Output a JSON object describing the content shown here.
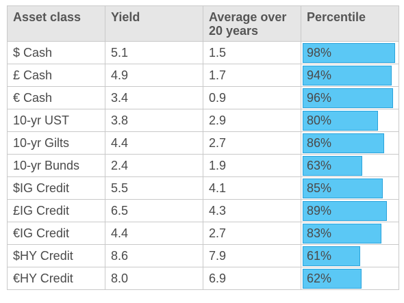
{
  "chart_data": {
    "type": "table",
    "columns": [
      "Asset class",
      "Yield",
      "Average over 20 years",
      "Percentile"
    ],
    "column_lines": {
      "avg": [
        "Average over",
        "20 years"
      ]
    },
    "rows": [
      {
        "asset": "$ Cash",
        "yield": "5.1",
        "avg": "1.5",
        "percentile": 98,
        "percentile_label": "98%"
      },
      {
        "asset": "£ Cash",
        "yield": "4.9",
        "avg": "1.7",
        "percentile": 94,
        "percentile_label": "94%"
      },
      {
        "asset": "€ Cash",
        "yield": "3.4",
        "avg": "0.9",
        "percentile": 96,
        "percentile_label": "96%"
      },
      {
        "asset": "10-yr UST",
        "yield": "3.8",
        "avg": "2.9",
        "percentile": 80,
        "percentile_label": "80%"
      },
      {
        "asset": "10-yr Gilts",
        "yield": "4.4",
        "avg": "2.7",
        "percentile": 86,
        "percentile_label": "86%"
      },
      {
        "asset": "10-yr Bunds",
        "yield": "2.4",
        "avg": "1.9",
        "percentile": 63,
        "percentile_label": "63%"
      },
      {
        "asset": "$IG Credit",
        "yield": "5.5",
        "avg": "4.1",
        "percentile": 85,
        "percentile_label": "85%"
      },
      {
        "asset": "£IG Credit",
        "yield": "6.5",
        "avg": "4.3",
        "percentile": 89,
        "percentile_label": "89%"
      },
      {
        "asset": "€IG Credit",
        "yield": "4.4",
        "avg": "2.7",
        "percentile": 83,
        "percentile_label": "83%"
      },
      {
        "asset": "$HY Credit",
        "yield": "8.6",
        "avg": "7.9",
        "percentile": 61,
        "percentile_label": "61%"
      },
      {
        "asset": "€HY Credit",
        "yield": "8.0",
        "avg": "6.9",
        "percentile": 62,
        "percentile_label": "62%"
      }
    ],
    "bar_range": [
      0,
      100
    ],
    "colors": {
      "bar_fill": "#5bc8f5",
      "bar_border": "#2aa3dc",
      "header_bg": "#e6e6e6"
    }
  }
}
